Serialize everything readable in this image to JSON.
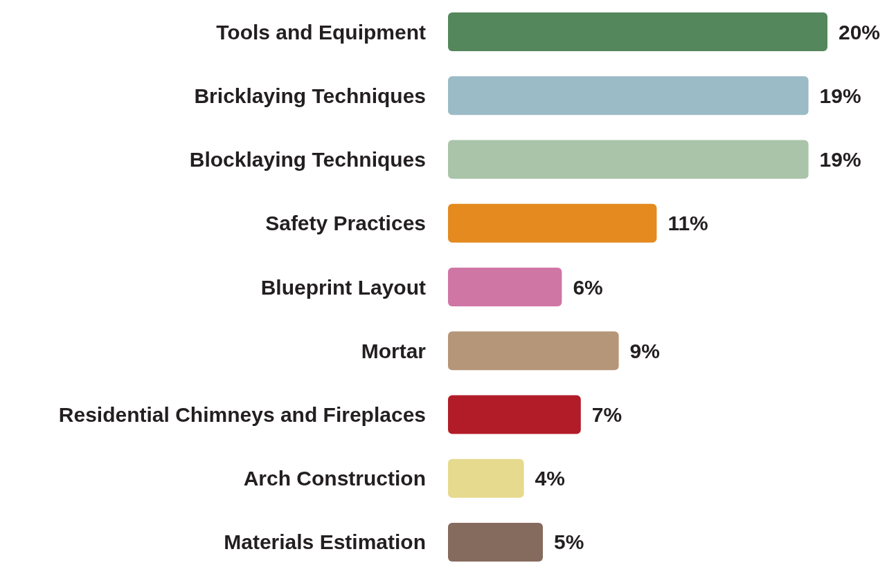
{
  "chart_data": {
    "type": "bar",
    "orientation": "horizontal",
    "categories": [
      "Tools and Equipment",
      "Bricklaying Techniques",
      "Blocklaying Techniques",
      "Safety Practices",
      "Blueprint Layout",
      "Mortar",
      "Residential Chimneys and Fireplaces",
      "Arch Construction",
      "Materials Estimation"
    ],
    "values": [
      20,
      19,
      19,
      11,
      6,
      9,
      7,
      4,
      5
    ],
    "colors": [
      "#55875c",
      "#9bbbc6",
      "#a9c4a9",
      "#e48a1e",
      "#cf76a5",
      "#b59679",
      "#b21c28",
      "#e5da8d",
      "#856a5e"
    ],
    "value_labels": [
      "20%",
      "19%",
      "19%",
      "11%",
      "6%",
      "9%",
      "7%",
      "4%",
      "5%"
    ]
  }
}
